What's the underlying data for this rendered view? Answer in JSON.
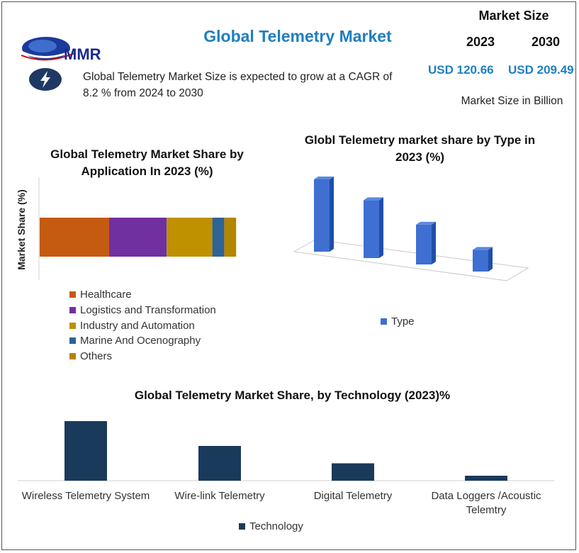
{
  "header": {
    "logo_text": "MMR",
    "title": "Global Telemetry Market",
    "summary": "Global Telemetry Market Size is expected to grow at a CAGR of 8.2 % from 2024 to 2030",
    "market_size": {
      "heading": "Market Size",
      "year_start": "2023",
      "year_end": "2030",
      "value_start": "USD 120.66",
      "value_end": "USD 209.49",
      "unit": "Market Size in Billion"
    }
  },
  "colors": {
    "title_blue": "#1f7fc0",
    "navy": "#1a3a5c"
  },
  "icons": {
    "logo": "globe-icon",
    "bolt": "lightning-bolt-icon"
  },
  "chart_data": [
    {
      "type": "bar",
      "orientation": "horizontal-stacked",
      "title": "Global Telemetry Market Share by Application In 2023 (%)",
      "ylabel": "Market Share (%)",
      "legend_position": "bottom",
      "series": [
        {
          "name": "Healthcare",
          "values": [
            35
          ],
          "color": "#c55a11"
        },
        {
          "name": "Logistics and Transformation",
          "values": [
            29
          ],
          "color": "#7030a0"
        },
        {
          "name": "Industry and Automation",
          "values": [
            23
          ],
          "color": "#bf9000"
        },
        {
          "name": "Marine And Ocenography",
          "values": [
            6
          ],
          "color": "#2e6396"
        },
        {
          "name": "Others",
          "values": [
            6
          ],
          "color": "#b38600"
        }
      ]
    },
    {
      "type": "bar",
      "style": "3d-column",
      "title": "Globl Telemetry market share by Type in 2023 (%)",
      "legend_position": "bottom",
      "categories": [
        "",
        "",
        "",
        ""
      ],
      "series": [
        {
          "name": "Type",
          "values": [
            40,
            32,
            22,
            12
          ],
          "color": "#3e6fd1"
        }
      ]
    },
    {
      "type": "bar",
      "title": "Global Telemetry Market Share, by Technology  (2023)%",
      "legend_position": "bottom",
      "categories": [
        "Wireless Telemetry System",
        "Wire-link Telemetry",
        "Digital Telemetry",
        "Data Loggers /Acoustic Telemtry"
      ],
      "series": [
        {
          "name": "Technology",
          "values": [
            48,
            28,
            14,
            4
          ],
          "color": "#1a3a5c"
        }
      ]
    }
  ]
}
